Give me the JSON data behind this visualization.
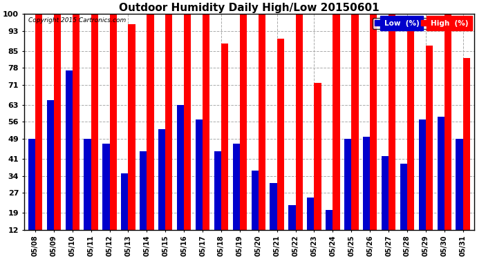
{
  "title": "Outdoor Humidity Daily High/Low 20150601",
  "copyright": "Copyright 2015 Cartronics.com",
  "dates": [
    "05/08",
    "05/09",
    "05/10",
    "05/11",
    "05/12",
    "05/13",
    "05/14",
    "05/15",
    "05/16",
    "05/17",
    "05/18",
    "05/19",
    "05/20",
    "05/21",
    "05/22",
    "05/23",
    "05/24",
    "05/25",
    "05/26",
    "05/27",
    "05/28",
    "05/29",
    "05/30",
    "05/31"
  ],
  "high": [
    100,
    100,
    100,
    100,
    100,
    96,
    100,
    100,
    100,
    100,
    88,
    100,
    100,
    90,
    100,
    72,
    100,
    100,
    100,
    100,
    97,
    87,
    100,
    82
  ],
  "low": [
    49,
    65,
    77,
    49,
    47,
    35,
    44,
    53,
    63,
    57,
    44,
    47,
    36,
    31,
    22,
    25,
    20,
    49,
    50,
    42,
    39,
    57,
    58,
    49
  ],
  "high_color": "#ff0000",
  "low_color": "#0000cc",
  "bg_color": "#ffffff",
  "grid_color": "#aaaaaa",
  "yticks": [
    12,
    19,
    27,
    34,
    41,
    49,
    56,
    63,
    71,
    78,
    85,
    93,
    100
  ],
  "ymin": 12,
  "ymax": 100,
  "bar_width": 0.38,
  "title_fontsize": 11,
  "legend_low_label": "Low  (%)",
  "legend_high_label": "High  (%)"
}
